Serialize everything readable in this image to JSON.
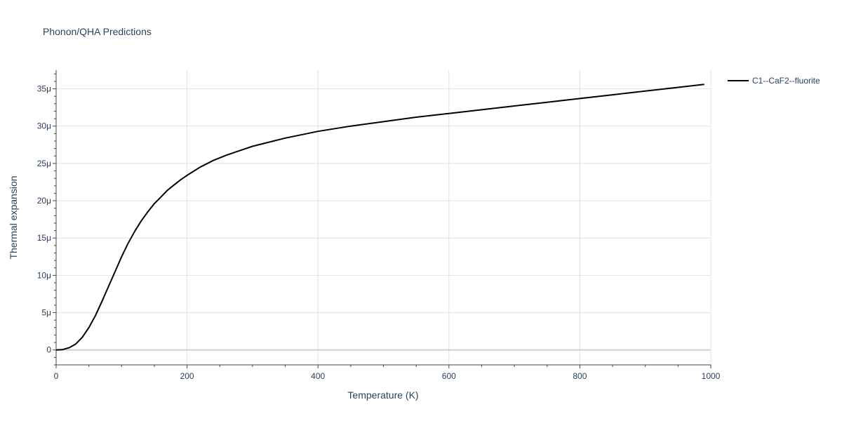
{
  "chart_data": {
    "type": "line",
    "title": "Phonon/QHA Predictions",
    "xlabel": "Temperature (K)",
    "ylabel": "Thermal expansion",
    "xlim": [
      0,
      1000
    ],
    "ylim": [
      -2e-06,
      3.75e-05
    ],
    "x_ticks": [
      0,
      200,
      400,
      600,
      800,
      1000
    ],
    "x_tick_labels": [
      "0",
      "200",
      "400",
      "600",
      "800",
      "1000"
    ],
    "y_ticks": [
      0,
      5e-06,
      1e-05,
      1.5e-05,
      2e-05,
      2.5e-05,
      3e-05,
      3.5e-05
    ],
    "y_tick_labels": [
      "0",
      "5μ",
      "10μ",
      "15μ",
      "20μ",
      "25μ",
      "30μ",
      "35μ"
    ],
    "grid": true,
    "legend_position": "top-right",
    "series": [
      {
        "name": "C1--CaF2--fluorite",
        "color": "#000000",
        "x": [
          0,
          10,
          20,
          30,
          40,
          50,
          60,
          70,
          80,
          90,
          100,
          110,
          120,
          130,
          140,
          150,
          160,
          170,
          180,
          190,
          200,
          220,
          240,
          260,
          280,
          300,
          350,
          400,
          450,
          500,
          550,
          600,
          650,
          700,
          750,
          800,
          850,
          900,
          950,
          990
        ],
        "y": [
          0,
          5e-08,
          3e-07,
          8e-07,
          1.7e-06,
          3e-06,
          4.6e-06,
          6.5e-06,
          8.5e-06,
          1.05e-05,
          1.25e-05,
          1.43e-05,
          1.59e-05,
          1.73e-05,
          1.85e-05,
          1.96e-05,
          2.05e-05,
          2.14e-05,
          2.21e-05,
          2.28e-05,
          2.34e-05,
          2.45e-05,
          2.54e-05,
          2.61e-05,
          2.67e-05,
          2.73e-05,
          2.84e-05,
          2.93e-05,
          3e-05,
          3.06e-05,
          3.12e-05,
          3.17e-05,
          3.22e-05,
          3.27e-05,
          3.32e-05,
          3.37e-05,
          3.42e-05,
          3.47e-05,
          3.52e-05,
          3.56e-05
        ]
      }
    ]
  }
}
